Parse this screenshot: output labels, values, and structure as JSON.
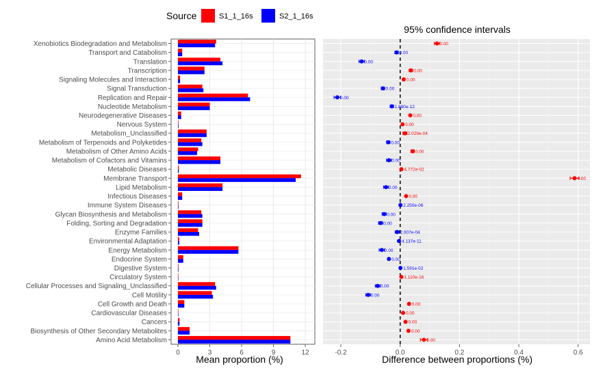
{
  "legend": {
    "title": "Source",
    "items": [
      {
        "label": "S1_1_16s",
        "color": "#ff0000"
      },
      {
        "label": "S2_1_16s",
        "color": "#0000ff"
      }
    ]
  },
  "chart_data": [
    {
      "type": "bar",
      "orientation": "horizontal",
      "xlabel": "Mean proportion (%)",
      "xlim": [
        0,
        12.5
      ],
      "xticks": [
        "0",
        "3",
        "6",
        "9",
        "12"
      ],
      "grid": true,
      "categories": [
        "Xenobiotics Biodegradation and Metabolism",
        "Transport and Catabolism",
        "Translation",
        "Transcription",
        "Signaling Molecules and Interaction",
        "Signal Transduction",
        "Replication and Repair",
        "Nucleotide Metabolism",
        "Neurodegenerative Diseases",
        "Nervous System",
        "Metabolism_Unclassified",
        "Metabolism of Terpenoids and Polyketides",
        "Metabolism of Other Amino Acids",
        "Metabolism of Cofactors and Vitamins",
        "Metabolic Diseases",
        "Membrane Transport",
        "Lipid Metabolism",
        "Infectious Diseases",
        "Immune System Diseases",
        "Glycan Biosynthesis and Metabolism",
        "Folding, Sorting and Degradation",
        "Enzyme Families",
        "Environmental Adaptation",
        "Energy Metabolism",
        "Endocrine System",
        "Digestive System",
        "Circulatory System",
        "Cellular Processes and Signaling_Unclassified",
        "Cell Motility",
        "Cell Growth and Death",
        "Cardiovascular Diseases",
        "Cancers",
        "Biosynthesis of Other Secondary Metabolites",
        "Amino Acid Metabolism"
      ],
      "series": [
        {
          "name": "S1_1_16s",
          "color": "#ff0000",
          "values": [
            3.6,
            0.4,
            4.0,
            2.5,
            0.2,
            2.3,
            6.6,
            3.0,
            0.3,
            0.05,
            2.7,
            2.2,
            1.9,
            4.0,
            0.08,
            11.6,
            4.2,
            0.4,
            0.05,
            2.2,
            2.3,
            1.9,
            0.12,
            5.7,
            0.5,
            0.05,
            0.03,
            3.5,
            3.2,
            0.6,
            0.04,
            0.15,
            1.1,
            10.6
          ]
        },
        {
          "name": "S2_1_16s",
          "color": "#0000ff",
          "values": [
            3.5,
            0.4,
            4.2,
            2.5,
            0.2,
            2.4,
            6.8,
            3.0,
            0.3,
            0.05,
            2.7,
            2.3,
            1.8,
            4.0,
            0.08,
            11.1,
            4.2,
            0.4,
            0.05,
            2.3,
            2.3,
            2.0,
            0.12,
            5.7,
            0.5,
            0.05,
            0.03,
            3.6,
            3.3,
            0.6,
            0.04,
            0.15,
            1.1,
            10.6
          ]
        }
      ]
    },
    {
      "type": "scatter",
      "subtype": "confidence-intervals",
      "title": "95% confidence intervals",
      "xlabel": "Difference between proportions (%)",
      "xlim": [
        -0.26,
        0.64
      ],
      "xticks": [
        -0.2,
        0.0,
        0.2,
        0.4,
        0.6
      ],
      "reference_line": 0,
      "grid": true,
      "points": [
        {
          "diff": 0.124,
          "lo": 0.115,
          "hi": 0.133,
          "label": "0.00",
          "color": "#ff0000"
        },
        {
          "diff": -0.012,
          "lo": -0.018,
          "hi": -0.006,
          "label": "0.00",
          "color": "#0000ff"
        },
        {
          "diff": -0.13,
          "lo": -0.139,
          "hi": -0.121,
          "label": "0.00",
          "color": "#0000ff"
        },
        {
          "diff": 0.036,
          "lo": 0.03,
          "hi": 0.042,
          "label": "0.00",
          "color": "#ff0000"
        },
        {
          "diff": 0.012,
          "lo": 0.008,
          "hi": 0.016,
          "label": "0.00",
          "color": "#ff0000"
        },
        {
          "diff": -0.058,
          "lo": -0.064,
          "hi": -0.052,
          "label": "0.00",
          "color": "#0000ff"
        },
        {
          "diff": -0.212,
          "lo": -0.223,
          "hi": -0.201,
          "label": "0.00",
          "color": "#0000ff"
        },
        {
          "diff": -0.028,
          "lo": -0.034,
          "hi": -0.022,
          "label": "1.880e-12",
          "color": "#0000ff"
        },
        {
          "diff": 0.034,
          "lo": 0.031,
          "hi": 0.037,
          "label": "0.00",
          "color": "#ff0000"
        },
        {
          "diff": 0.008,
          "lo": 0.006,
          "hi": 0.01,
          "label": "0.00",
          "color": "#ff0000"
        },
        {
          "diff": 0.016,
          "lo": 0.009,
          "hi": 0.023,
          "label": "2.029e-04",
          "color": "#ff0000"
        },
        {
          "diff": -0.04,
          "lo": -0.046,
          "hi": -0.034,
          "label": "0.00",
          "color": "#0000ff"
        },
        {
          "diff": 0.042,
          "lo": 0.036,
          "hi": 0.048,
          "label": "0.00",
          "color": "#ff0000"
        },
        {
          "diff": -0.038,
          "lo": -0.046,
          "hi": -0.03,
          "label": "0.00",
          "color": "#0000ff"
        },
        {
          "diff": 0.004,
          "lo": 0.001,
          "hi": 0.007,
          "label": "4.772e-02",
          "color": "#ff0000"
        },
        {
          "diff": 0.588,
          "lo": 0.573,
          "hi": 0.603,
          "label": "0.00",
          "color": "#ff0000"
        },
        {
          "diff": -0.048,
          "lo": -0.056,
          "hi": -0.04,
          "label": "0.00",
          "color": "#0000ff"
        },
        {
          "diff": 0.02,
          "lo": 0.017,
          "hi": 0.023,
          "label": "0.00",
          "color": "#ff0000"
        },
        {
          "diff": 0.001,
          "lo": 0.0,
          "hi": 0.002,
          "label": "2.250e-06",
          "color": "#0000ff"
        },
        {
          "diff": -0.054,
          "lo": -0.061,
          "hi": -0.047,
          "label": "0.00",
          "color": "#0000ff"
        },
        {
          "diff": -0.066,
          "lo": -0.073,
          "hi": -0.059,
          "label": "0.00",
          "color": "#0000ff"
        },
        {
          "diff": -0.01,
          "lo": -0.017,
          "hi": -0.003,
          "label": "2.007e-04",
          "color": "#0000ff"
        },
        {
          "diff": -0.004,
          "lo": -0.006,
          "hi": -0.002,
          "label": "4.137e-11",
          "color": "#0000ff"
        },
        {
          "diff": -0.062,
          "lo": -0.071,
          "hi": -0.053,
          "label": "0.00",
          "color": "#0000ff"
        },
        {
          "diff": -0.038,
          "lo": -0.042,
          "hi": -0.034,
          "label": "0.00",
          "color": "#0000ff"
        },
        {
          "diff": 0.001,
          "lo": 0.0,
          "hi": 0.002,
          "label": "1.591e-02",
          "color": "#0000ff"
        },
        {
          "diff": 0.004,
          "lo": 0.003,
          "hi": 0.005,
          "label": "1.110e-16",
          "color": "#ff0000"
        },
        {
          "diff": -0.076,
          "lo": -0.084,
          "hi": -0.068,
          "label": "0.00",
          "color": "#0000ff"
        },
        {
          "diff": -0.108,
          "lo": -0.116,
          "hi": -0.1,
          "label": "0.00",
          "color": "#0000ff"
        },
        {
          "diff": 0.03,
          "lo": 0.026,
          "hi": 0.034,
          "label": "0.00",
          "color": "#ff0000"
        },
        {
          "diff": 0.01,
          "lo": 0.008,
          "hi": 0.012,
          "label": "0.00",
          "color": "#ff0000"
        },
        {
          "diff": 0.018,
          "lo": 0.015,
          "hi": 0.021,
          "label": "0.00",
          "color": "#ff0000"
        },
        {
          "diff": 0.028,
          "lo": 0.024,
          "hi": 0.032,
          "label": "0.00",
          "color": "#ff0000"
        },
        {
          "diff": 0.08,
          "lo": 0.068,
          "hi": 0.092,
          "label": "0.00",
          "color": "#ff0000"
        }
      ]
    }
  ]
}
